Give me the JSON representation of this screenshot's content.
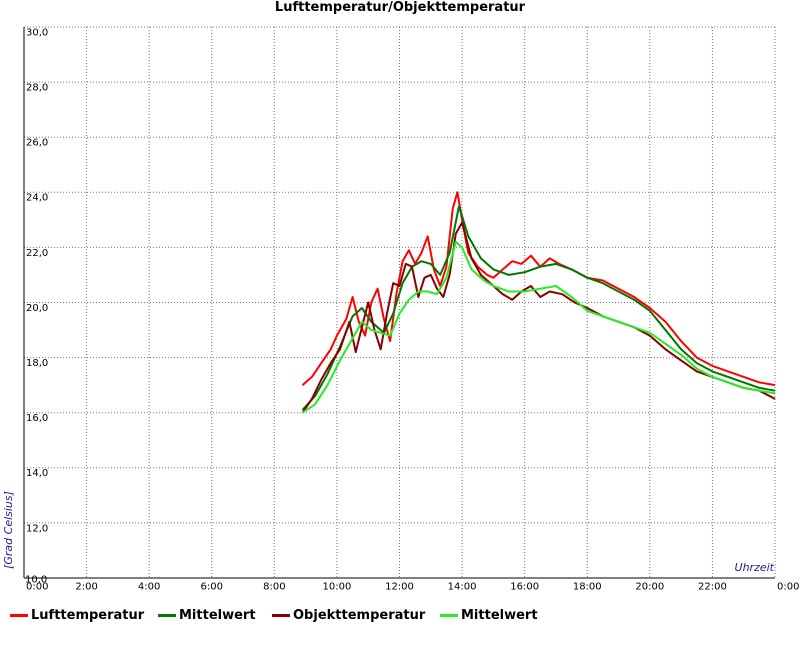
{
  "chart_data": {
    "type": "line",
    "title": "Lufttemperatur/Objekttemperatur",
    "ylabel": "[Grad Celsius]",
    "xlabel": "Uhrzeit",
    "x_ticks": [
      "0:00",
      "2:00",
      "4:00",
      "6:00",
      "8:00",
      "10:00",
      "12:00",
      "14:00",
      "16:00",
      "18:00",
      "20:00",
      "22:00",
      "0:00"
    ],
    "y_ticks": [
      "10,0",
      "12,0",
      "14,0",
      "16,0",
      "18,0",
      "20,0",
      "22,0",
      "24,0",
      "26,0",
      "28,0",
      "30,0"
    ],
    "xlim": [
      0,
      24
    ],
    "ylim": [
      10,
      30
    ],
    "grid": true,
    "legend_position": "bottom",
    "series": [
      {
        "name": "Lufttemperatur",
        "color": "#ff0000",
        "x": [
          8.9,
          9.2,
          9.5,
          9.8,
          10.0,
          10.3,
          10.5,
          10.7,
          10.9,
          11.1,
          11.3,
          11.5,
          11.7,
          11.9,
          12.1,
          12.3,
          12.5,
          12.7,
          12.9,
          13.1,
          13.3,
          13.5,
          13.7,
          13.85,
          14.0,
          14.2,
          14.5,
          14.8,
          15.0,
          15.3,
          15.6,
          15.9,
          16.2,
          16.5,
          16.8,
          17.1,
          17.5,
          18.0,
          18.5,
          19.0,
          19.5,
          20.0,
          20.5,
          21.0,
          21.5,
          22.0,
          22.5,
          23.0,
          23.5,
          24.0
        ],
        "y": [
          17.0,
          17.3,
          17.8,
          18.3,
          18.8,
          19.4,
          20.2,
          19.3,
          18.8,
          20.0,
          20.5,
          19.4,
          18.6,
          20.3,
          21.5,
          21.9,
          21.4,
          21.8,
          22.4,
          21.2,
          20.6,
          21.3,
          23.4,
          24.0,
          23.0,
          21.8,
          21.3,
          21.0,
          20.9,
          21.2,
          21.5,
          21.4,
          21.7,
          21.3,
          21.6,
          21.4,
          21.2,
          20.9,
          20.8,
          20.5,
          20.2,
          19.8,
          19.3,
          18.6,
          18.0,
          17.7,
          17.5,
          17.3,
          17.1,
          17.0
        ]
      },
      {
        "name": "Mittelwert",
        "color": "#007700",
        "x": [
          8.9,
          9.3,
          9.7,
          10.1,
          10.5,
          10.8,
          11.1,
          11.5,
          11.8,
          12.1,
          12.4,
          12.7,
          13.0,
          13.3,
          13.6,
          13.9,
          14.2,
          14.6,
          15.0,
          15.5,
          16.0,
          16.5,
          17.0,
          17.5,
          18.0,
          18.5,
          19.0,
          19.5,
          20.0,
          20.5,
          21.0,
          21.5,
          22.0,
          22.5,
          23.0,
          23.5,
          24.0
        ],
        "y": [
          16.1,
          16.6,
          17.4,
          18.4,
          19.5,
          19.8,
          19.3,
          18.9,
          19.6,
          20.7,
          21.3,
          21.5,
          21.4,
          21.0,
          21.8,
          23.5,
          22.4,
          21.6,
          21.2,
          21.0,
          21.1,
          21.3,
          21.4,
          21.2,
          20.9,
          20.7,
          20.4,
          20.1,
          19.7,
          19.0,
          18.3,
          17.8,
          17.5,
          17.3,
          17.1,
          16.9,
          16.8
        ]
      },
      {
        "name": "Objekttemperatur",
        "color": "#880000",
        "x": [
          8.9,
          9.2,
          9.5,
          9.8,
          10.1,
          10.4,
          10.6,
          10.8,
          11.0,
          11.2,
          11.4,
          11.6,
          11.8,
          12.0,
          12.2,
          12.4,
          12.6,
          12.8,
          13.0,
          13.2,
          13.4,
          13.6,
          13.8,
          14.0,
          14.3,
          14.6,
          15.0,
          15.3,
          15.6,
          15.9,
          16.2,
          16.5,
          16.8,
          17.2,
          17.6,
          18.0,
          18.5,
          19.0,
          19.5,
          20.0,
          20.5,
          21.0,
          21.5,
          22.0,
          22.5,
          23.0,
          23.5,
          24.0
        ],
        "y": [
          16.0,
          16.5,
          17.2,
          17.8,
          18.3,
          19.3,
          18.2,
          19.1,
          20.0,
          19.0,
          18.3,
          19.6,
          20.7,
          20.6,
          21.4,
          21.3,
          20.2,
          20.9,
          21.0,
          20.5,
          20.2,
          21.0,
          22.5,
          22.9,
          21.6,
          21.0,
          20.6,
          20.3,
          20.1,
          20.4,
          20.6,
          20.2,
          20.4,
          20.3,
          20.0,
          19.8,
          19.5,
          19.3,
          19.1,
          18.8,
          18.3,
          17.9,
          17.5,
          17.3,
          17.1,
          16.9,
          16.8,
          16.5
        ]
      },
      {
        "name": "Mittelwert",
        "color": "#22ee22",
        "x": [
          8.9,
          9.3,
          9.7,
          10.1,
          10.5,
          10.8,
          11.1,
          11.4,
          11.7,
          12.0,
          12.3,
          12.6,
          12.9,
          13.2,
          13.5,
          13.8,
          14.0,
          14.3,
          14.7,
          15.0,
          15.5,
          16.0,
          16.5,
          17.0,
          17.5,
          18.0,
          18.5,
          19.0,
          19.5,
          20.0,
          20.5,
          21.0,
          21.5,
          22.0,
          22.5,
          23.0,
          23.5,
          24.0
        ],
        "y": [
          16.0,
          16.3,
          17.0,
          17.9,
          18.7,
          19.3,
          19.0,
          18.9,
          18.8,
          19.6,
          20.1,
          20.4,
          20.4,
          20.3,
          20.9,
          22.2,
          22.0,
          21.2,
          20.8,
          20.6,
          20.4,
          20.4,
          20.5,
          20.6,
          20.2,
          19.7,
          19.5,
          19.3,
          19.1,
          18.9,
          18.5,
          18.1,
          17.6,
          17.3,
          17.1,
          16.9,
          16.8,
          16.7
        ]
      }
    ]
  }
}
